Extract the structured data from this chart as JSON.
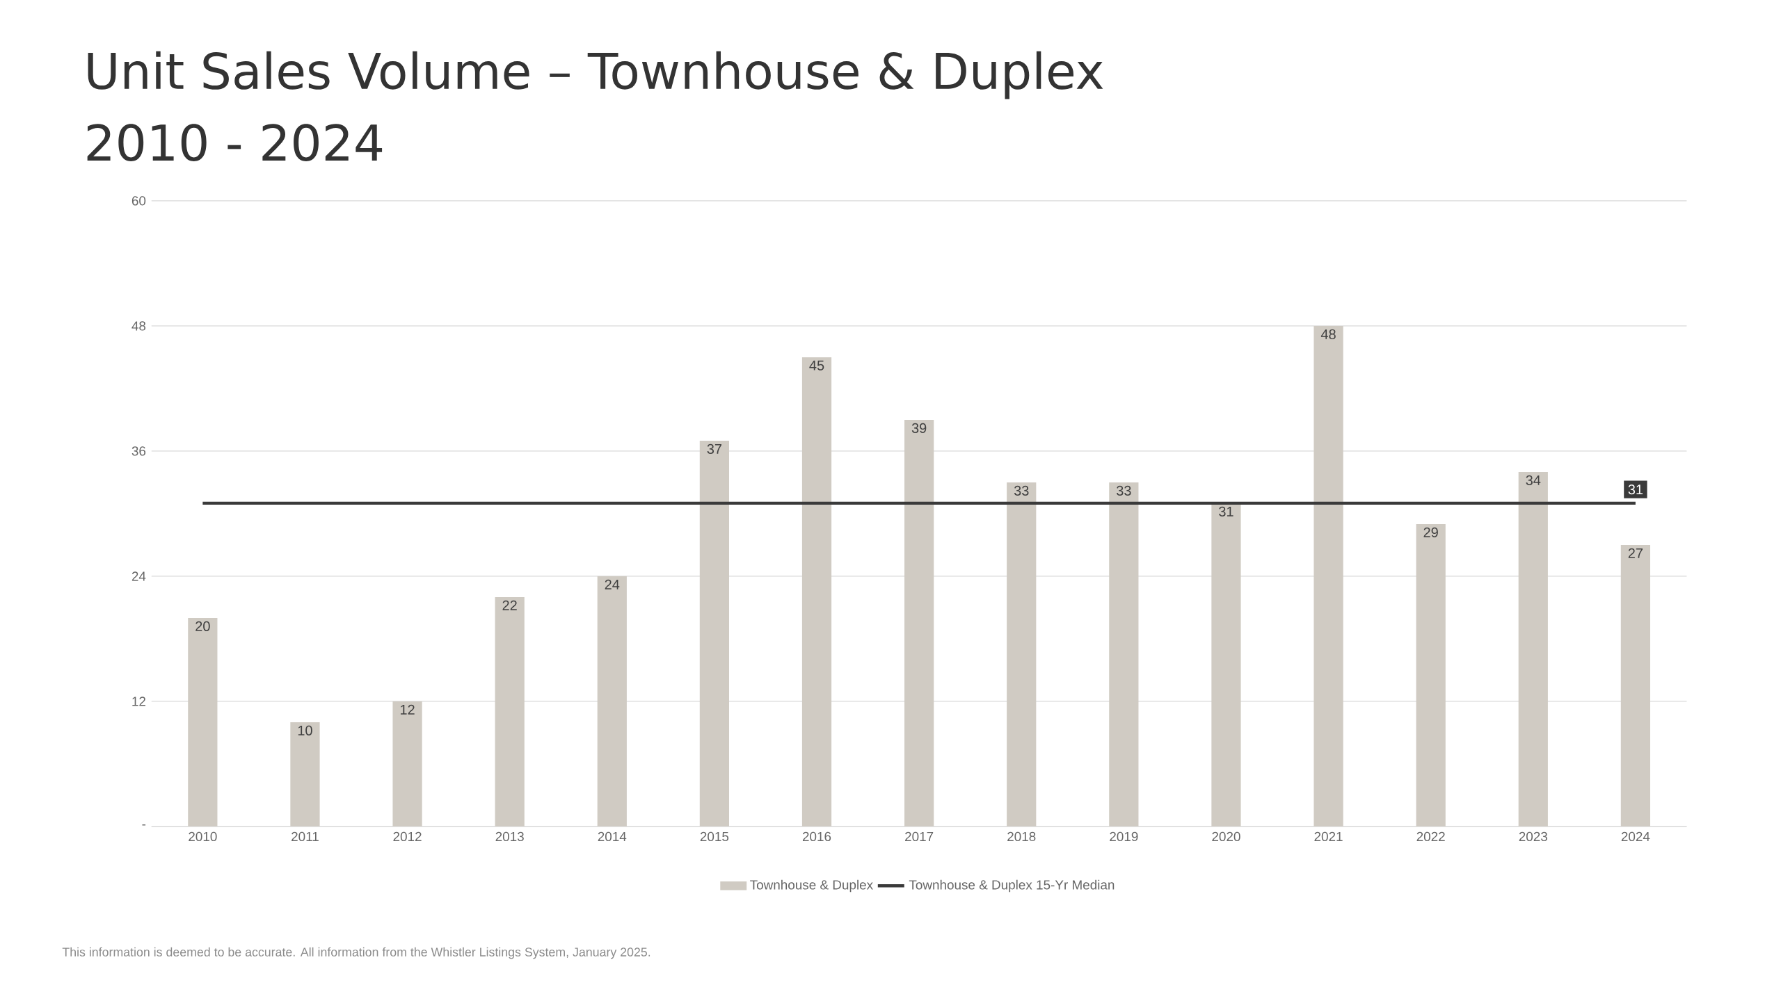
{
  "chart_data": {
    "type": "bar",
    "title": "Unit Sales Volume – Townhouse & Duplex",
    "subtitle": "2010 - 2024",
    "categories": [
      "2010",
      "2011",
      "2012",
      "2013",
      "2014",
      "2015",
      "2016",
      "2017",
      "2018",
      "2019",
      "2020",
      "2021",
      "2022",
      "2023",
      "2024"
    ],
    "series": [
      {
        "name": "Townhouse & Duplex",
        "color": "#d0cbc3",
        "values": [
          20,
          10,
          12,
          22,
          24,
          37,
          45,
          39,
          33,
          33,
          31,
          48,
          29,
          34,
          27
        ],
        "value_labels": [
          "20",
          "10",
          "12",
          "22",
          "24",
          "37",
          "45",
          "39",
          "33",
          "33",
          "31",
          "48",
          "29",
          "34",
          "27"
        ]
      },
      {
        "name": "Townhouse & Duplex 15-Yr Median",
        "type": "line",
        "color": "#3a3a3a",
        "values": [
          31,
          31,
          31,
          31,
          31,
          31,
          31,
          31,
          31,
          31,
          31,
          31,
          31,
          31,
          31
        ],
        "value_labels": [
          null,
          null,
          null,
          null,
          null,
          null,
          null,
          null,
          null,
          null,
          null,
          null,
          null,
          null,
          "31"
        ]
      }
    ],
    "ylim": [
      0,
      60
    ],
    "yticks": [
      {
        "value": 0,
        "label": "-"
      },
      12,
      24,
      36,
      48,
      60
    ],
    "grid": "y",
    "legend": "bottom",
    "marker": "none",
    "line_style": "solid",
    "annotations": [
      "This information is deemed to be accurate. All information from the Whistler Listings System, January 2025."
    ]
  }
}
